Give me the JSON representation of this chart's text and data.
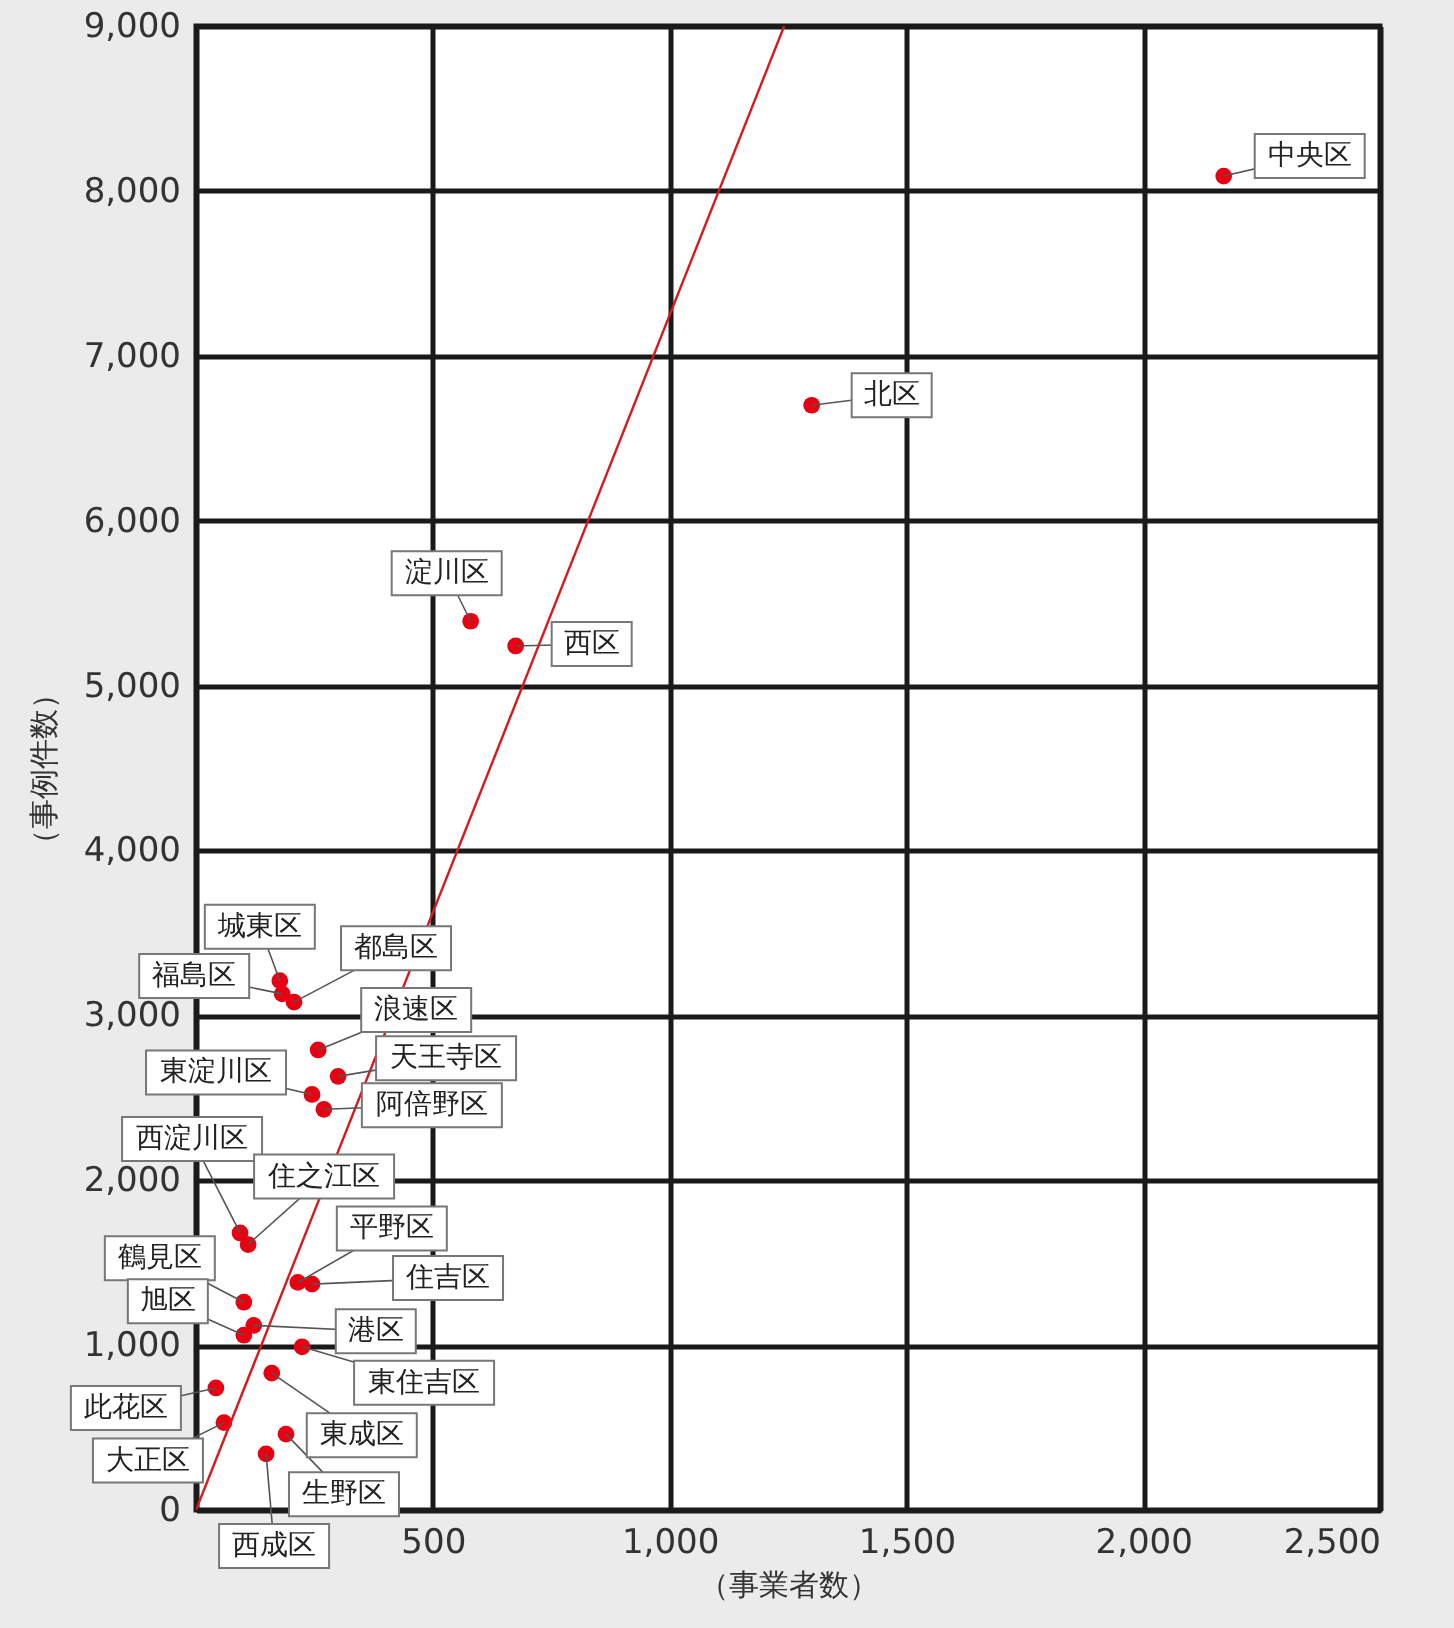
{
  "chart_data": {
    "type": "scatter",
    "xlabel": "（事業者数）",
    "ylabel": "（事例件数）",
    "xlim": [
      0,
      2500
    ],
    "ylim": [
      0,
      9000
    ],
    "xticks": [
      {
        "value": 0,
        "label": null
      },
      500,
      {
        "value": 1000,
        "label": "1,000"
      },
      {
        "value": 1500,
        "label": "1,500"
      },
      {
        "value": 2000,
        "label": "2,000"
      },
      {
        "value": 2500,
        "label": "2,500"
      }
    ],
    "yticks": [
      0,
      {
        "value": 1000,
        "label": "1,000"
      },
      {
        "value": 2000,
        "label": "2,000"
      },
      {
        "value": 3000,
        "label": "3,000"
      },
      {
        "value": 4000,
        "label": "4,000"
      },
      {
        "value": 5000,
        "label": "5,000"
      },
      {
        "value": 6000,
        "label": "6,000"
      },
      {
        "value": 7000,
        "label": "7,000"
      },
      {
        "value": 8000,
        "label": "8,000"
      },
      {
        "value": 9000,
        "label": "9,000"
      }
    ],
    "grid": true,
    "series": [
      {
        "color": "#e60012",
        "marker": "circle",
        "x": [
          2170,
          1300,
          580,
          675,
          177,
          182,
          207,
          258,
          300,
          245,
          270,
          93,
          110,
          215,
          245,
          101,
          101,
          122,
          224,
          160,
          42,
          59,
          190,
          148
        ],
        "values": [
          8090,
          6700,
          5390,
          5240,
          3210,
          3130,
          3080,
          2790,
          2630,
          2520,
          2430,
          1680,
          1610,
          1380,
          1370,
          1260,
          1060,
          1120,
          990,
          830,
          740,
          530,
          460,
          340
        ]
      },
      {
        "type": "line",
        "color": "#d7191c",
        "x": [
          0,
          1242
        ],
        "values": [
          0,
          9000
        ],
        "line_style": "solid"
      }
    ],
    "annotations": [
      {
        "text": "中央区",
        "x": 2170,
        "y": 8090
      },
      {
        "text": "北区",
        "x": 1300,
        "y": 6700
      },
      {
        "text": "淀川区",
        "x": 580,
        "y": 5390
      },
      {
        "text": "西区",
        "x": 675,
        "y": 5240
      },
      {
        "text": "城東区",
        "x": 177,
        "y": 3210
      },
      {
        "text": "福島区",
        "x": 182,
        "y": 3130
      },
      {
        "text": "都島区",
        "x": 207,
        "y": 3080
      },
      {
        "text": "浪速区",
        "x": 258,
        "y": 2790
      },
      {
        "text": "天王寺区",
        "x": 300,
        "y": 2630
      },
      {
        "text": "東淀川区",
        "x": 245,
        "y": 2520
      },
      {
        "text": "阿倍野区",
        "x": 270,
        "y": 2430
      },
      {
        "text": "西淀川区",
        "x": 93,
        "y": 1680
      },
      {
        "text": "住之江区",
        "x": 110,
        "y": 1610
      },
      {
        "text": "平野区",
        "x": 215,
        "y": 1380
      },
      {
        "text": "住吉区",
        "x": 245,
        "y": 1370
      },
      {
        "text": "鶴見区",
        "x": 101,
        "y": 1260
      },
      {
        "text": "旭区",
        "x": 101,
        "y": 1060
      },
      {
        "text": "港区",
        "x": 122,
        "y": 1120
      },
      {
        "text": "東住吉区",
        "x": 224,
        "y": 990
      },
      {
        "text": "東成区",
        "x": 160,
        "y": 830
      },
      {
        "text": "此花区",
        "x": 42,
        "y": 740
      },
      {
        "text": "大正区",
        "x": 59,
        "y": 530
      },
      {
        "text": "生野区",
        "x": 190,
        "y": 460
      },
      {
        "text": "西成区",
        "x": 148,
        "y": 340
      }
    ]
  }
}
